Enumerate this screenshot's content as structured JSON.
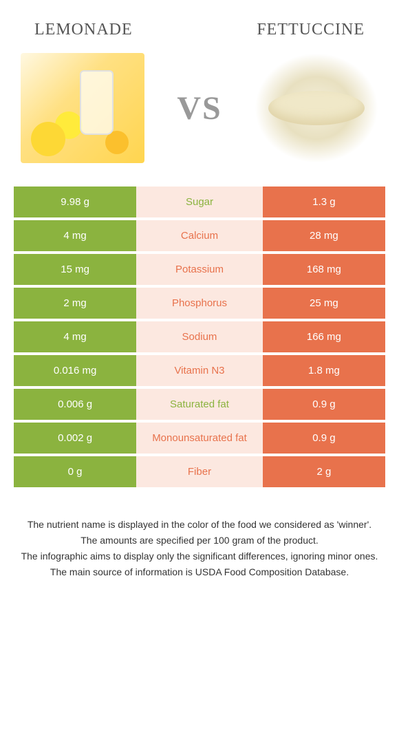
{
  "header": {
    "left_title": "Lemonade",
    "right_title": "Fettuccine"
  },
  "vs_label": "VS",
  "colors": {
    "left_bg": "#8bb33f",
    "right_bg": "#e8724c",
    "mid_bg": "#fce8e0",
    "left_text": "#ffffff",
    "right_text": "#ffffff"
  },
  "rows": [
    {
      "left": "9.98 g",
      "label": "Sugar",
      "right": "1.3 g",
      "winner": "left"
    },
    {
      "left": "4 mg",
      "label": "Calcium",
      "right": "28 mg",
      "winner": "right"
    },
    {
      "left": "15 mg",
      "label": "Potassium",
      "right": "168 mg",
      "winner": "right"
    },
    {
      "left": "2 mg",
      "label": "Phosphorus",
      "right": "25 mg",
      "winner": "right"
    },
    {
      "left": "4 mg",
      "label": "Sodium",
      "right": "166 mg",
      "winner": "right"
    },
    {
      "left": "0.016 mg",
      "label": "Vitamin N3",
      "right": "1.8 mg",
      "winner": "right"
    },
    {
      "left": "0.006 g",
      "label": "Saturated fat",
      "right": "0.9 g",
      "winner": "left"
    },
    {
      "left": "0.002 g",
      "label": "Monounsaturated fat",
      "right": "0.9 g",
      "winner": "right"
    },
    {
      "left": "0 g",
      "label": "Fiber",
      "right": "2 g",
      "winner": "right"
    }
  ],
  "footnotes": [
    "The nutrient name is displayed in the color of the food we considered as 'winner'.",
    "The amounts are specified per 100 gram of the product.",
    "The infographic aims to display only the significant differences, ignoring minor ones.",
    "The main source of information is USDA Food Composition Database."
  ]
}
